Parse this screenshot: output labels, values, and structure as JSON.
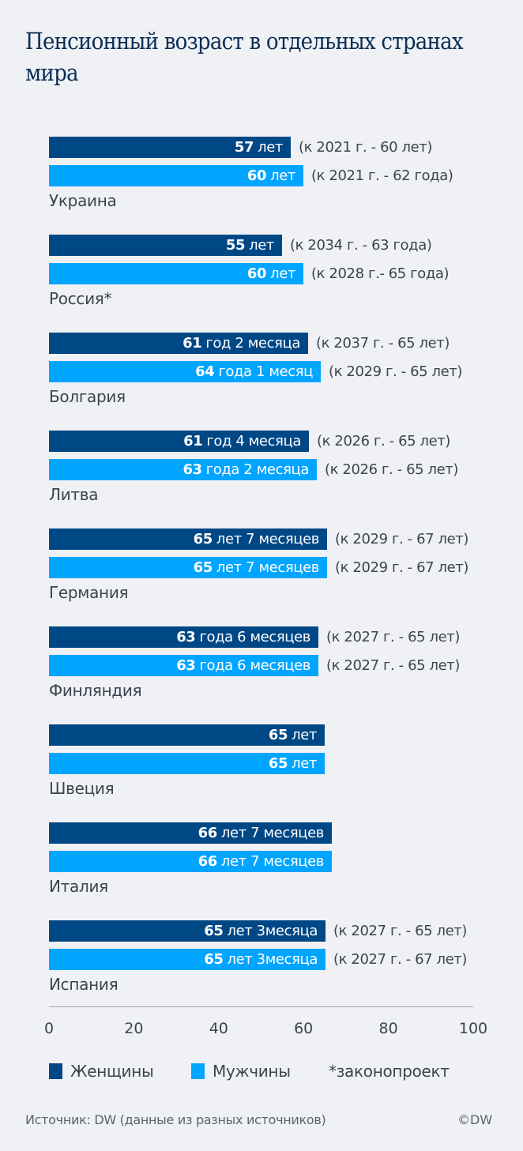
{
  "title": "Пенсионный возраст в отдельных странах мира",
  "colors": {
    "women": "#004785",
    "men": "#00a5ff",
    "background": "#f0f1f4",
    "title": "#0a2e57"
  },
  "countries": [
    {
      "name": "Украина",
      "women": {
        "num": "57",
        "rest": "лет",
        "value": 57,
        "note": "(к 2021 г. - 60 лет)"
      },
      "men": {
        "num": "60",
        "rest": "лет",
        "value": 60,
        "note": "(к 2021 г. - 62 года)"
      }
    },
    {
      "name": "Россия*",
      "women": {
        "num": "55",
        "rest": "лет",
        "value": 55,
        "note": "(к 2034 г. - 63 года)"
      },
      "men": {
        "num": "60",
        "rest": "лет",
        "value": 60,
        "note": "(к 2028 г.- 65 года)"
      }
    },
    {
      "name": "Болгария",
      "women": {
        "num": "61",
        "rest": "год 2 месяца",
        "value": 61.17,
        "note": "(к 2037 г. - 65 лет)"
      },
      "men": {
        "num": "64",
        "rest": "года 1 месяц",
        "value": 64.08,
        "note": "(к 2029 г. - 65 лет)"
      }
    },
    {
      "name": "Литва",
      "women": {
        "num": "61",
        "rest": "год 4 месяца",
        "value": 61.33,
        "note": "(к 2026 г. - 65 лет)"
      },
      "men": {
        "num": "63",
        "rest": "года 2 месяца",
        "value": 63.17,
        "note": "(к 2026 г. - 65 лет)"
      }
    },
    {
      "name": "Германия",
      "women": {
        "num": "65",
        "rest": "лет 7 месяцев",
        "value": 65.58,
        "note": "(к 2029 г. - 67 лет)"
      },
      "men": {
        "num": "65",
        "rest": "лет 7 месяцев",
        "value": 65.58,
        "note": "(к 2029 г. - 67 лет)"
      }
    },
    {
      "name": "Финляндия",
      "women": {
        "num": "63",
        "rest": "года 6 месяцев",
        "value": 63.5,
        "note": "(к 2027 г. - 65 лет)"
      },
      "men": {
        "num": "63",
        "rest": "года 6 месяцев",
        "value": 63.5,
        "note": "(к 2027 г. - 65 лет)"
      }
    },
    {
      "name": "Швеция",
      "women": {
        "num": "65",
        "rest": "лет",
        "value": 65,
        "note": ""
      },
      "men": {
        "num": "65",
        "rest": "лет",
        "value": 65,
        "note": ""
      }
    },
    {
      "name": "Италия",
      "women": {
        "num": "66",
        "rest": "лет 7 месяцев",
        "value": 66.58,
        "note": ""
      },
      "men": {
        "num": "66",
        "rest": "лет 7 месяцев",
        "value": 66.58,
        "note": ""
      }
    },
    {
      "name": "Испания",
      "women": {
        "num": "65",
        "rest": "лет 3месяца",
        "value": 65.25,
        "note": "(к 2027 г. - 65 лет)"
      },
      "men": {
        "num": "65",
        "rest": "лет 3месяца",
        "value": 65.25,
        "note": "(к 2027 г. - 67 лет)"
      }
    }
  ],
  "axis": {
    "ticks": [
      "0",
      "20",
      "40",
      "60",
      "80",
      "100"
    ]
  },
  "legend": {
    "women": "Женщины",
    "men": "Мужчины",
    "footnote": "*законопроект"
  },
  "source": "Источник: DW (данные из разных источников)",
  "copyright": "©DW",
  "chart_data": {
    "type": "bar",
    "orientation": "horizontal",
    "title": "Пенсионный возраст в отдельных странах мира",
    "categories": [
      "Украина",
      "Россия*",
      "Болгария",
      "Литва",
      "Германия",
      "Финляндия",
      "Швеция",
      "Италия",
      "Испания"
    ],
    "series": [
      {
        "name": "Женщины",
        "color": "#004785",
        "values": [
          57,
          55,
          61.17,
          61.33,
          65.58,
          63.5,
          65,
          66.58,
          65.25
        ]
      },
      {
        "name": "Мужчины",
        "color": "#00a5ff",
        "values": [
          60,
          60,
          64.08,
          63.17,
          65.58,
          63.5,
          65,
          66.58,
          65.25
        ]
      }
    ],
    "annotations": {
      "Украина": [
        "(к 2021 г. - 60 лет)",
        "(к 2021 г. - 62 года)"
      ],
      "Россия*": [
        "(к 2034 г. - 63 года)",
        "(к 2028 г.- 65 года)"
      ],
      "Болгария": [
        "(к 2037 г. - 65 лет)",
        "(к 2029 г. - 65 лет)"
      ],
      "Литва": [
        "(к 2026 г. - 65 лет)",
        "(к 2026 г. - 65 лет)"
      ],
      "Германия": [
        "(к 2029 г. - 67 лет)",
        "(к 2029 г. - 67 лет)"
      ],
      "Финляндия": [
        "(к 2027 г. - 65 лет)",
        "(к 2027 г. - 65 лет)"
      ],
      "Испания": [
        "(к 2027 г. - 65 лет)",
        "(к 2027 г. - 67 лет)"
      ]
    },
    "xlabel": "",
    "ylabel": "",
    "xlim": [
      0,
      100
    ],
    "xticks": [
      0,
      20,
      40,
      60,
      80,
      100
    ],
    "grid": false,
    "legend_position": "bottom",
    "footnote": "*законопроект",
    "source": "Источник: DW (данные из разных источников)"
  }
}
